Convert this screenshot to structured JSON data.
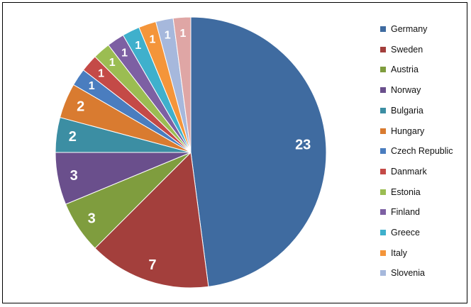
{
  "chart_data": {
    "type": "pie",
    "categories": [
      "Germany",
      "Sweden",
      "Austria",
      "Norway",
      "Bulgaria",
      "Hungary",
      "Czech Republic",
      "Danmark",
      "Estonia",
      "Finland",
      "Greece",
      "Italy",
      "Slovenia",
      ""
    ],
    "values": [
      23,
      7,
      3,
      3,
      2,
      2,
      1,
      1,
      1,
      1,
      1,
      1,
      1,
      1
    ],
    "data_labels": [
      "23",
      "7",
      "3",
      "3",
      "2",
      "2",
      "1",
      "1",
      "1",
      "1",
      "1",
      "1",
      "1",
      "1"
    ],
    "colors": [
      "#3f6ba0",
      "#a33f3c",
      "#7f9d3e",
      "#6a4f8c",
      "#3c8ea3",
      "#d97b30",
      "#4a7dbf",
      "#c44a47",
      "#9bbd52",
      "#7d60a3",
      "#3fb0cc",
      "#f4953a",
      "#a6b8dc",
      "#dfa6a5"
    ],
    "legend": {
      "position": "right",
      "entries": [
        "Germany",
        "Sweden",
        "Austria",
        "Norway",
        "Bulgaria",
        "Hungary",
        "Czech Republic",
        "Danmark",
        "Estonia",
        "Finland",
        "Greece",
        "Italy",
        "Slovenia"
      ]
    },
    "start_angle": "12 o'clock, clockwise",
    "title": ""
  }
}
